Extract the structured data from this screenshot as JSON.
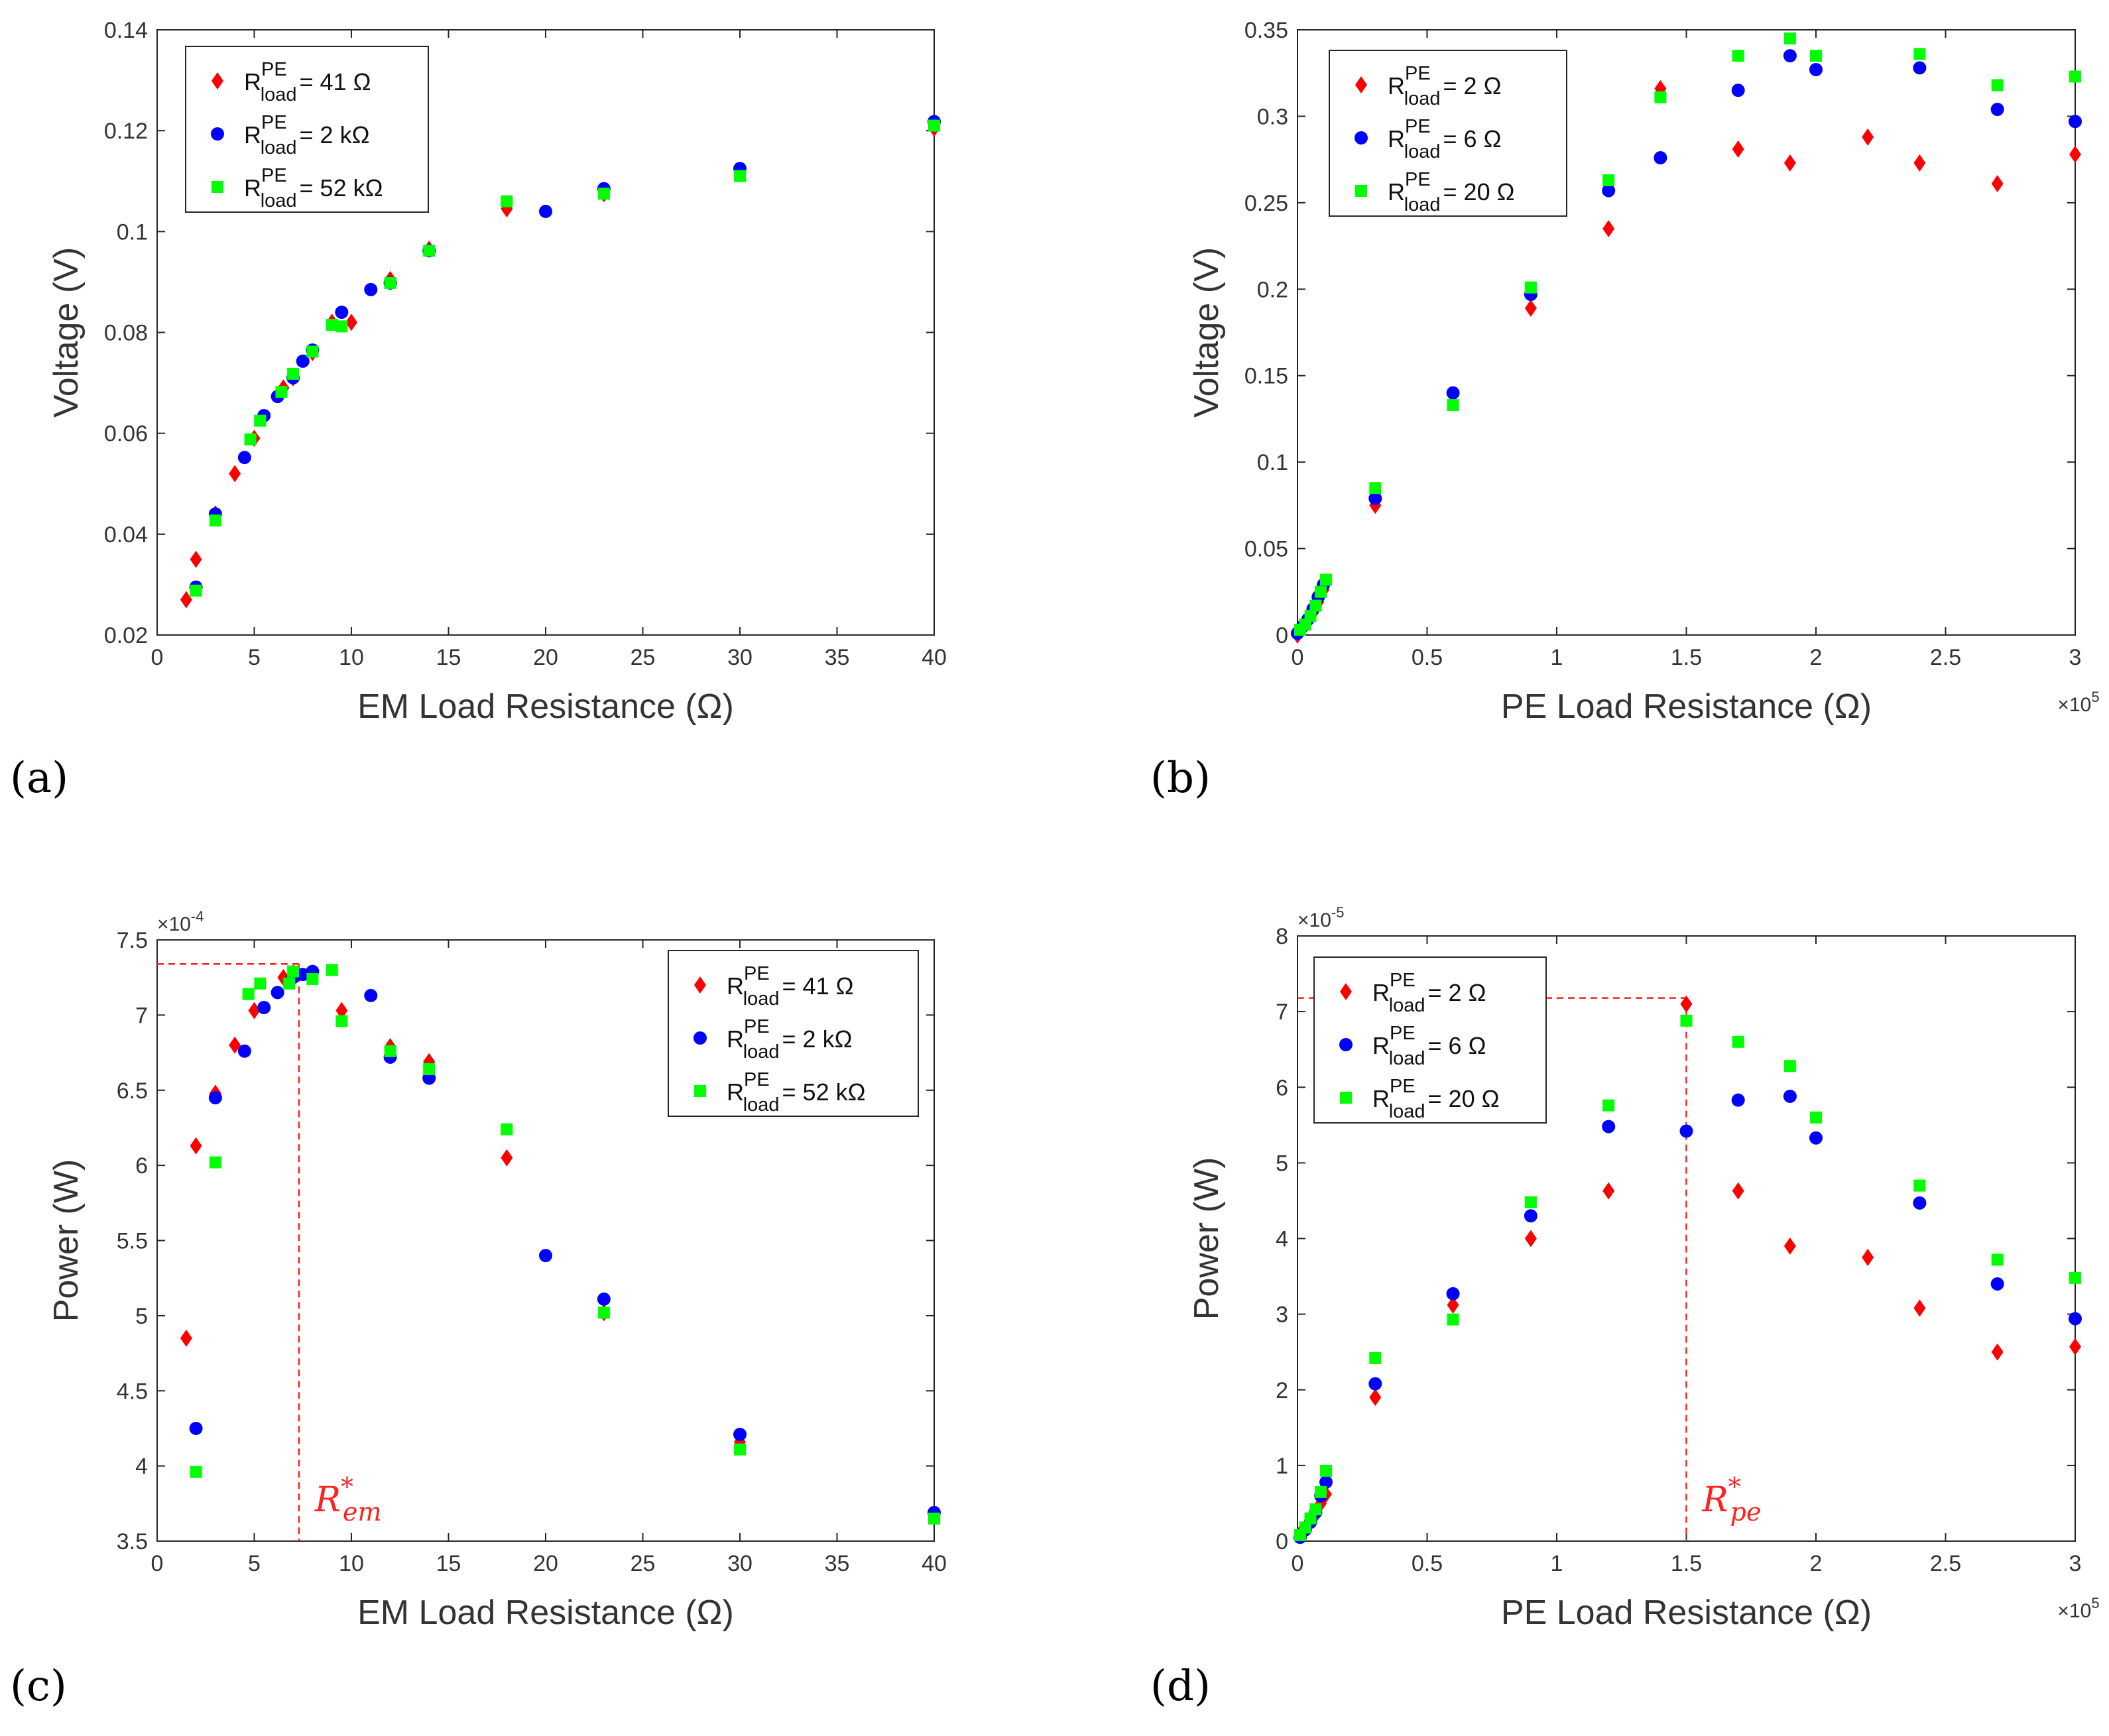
{
  "figure": {
    "panels": [
      "(a)",
      "(b)",
      "(c)",
      "(d)"
    ]
  },
  "colors": {
    "red": "#ff0000",
    "blue": "#0000ff",
    "green": "#00ff00",
    "annotation": "#ff2020"
  },
  "chart_data": [
    {
      "id": "a",
      "type": "scatter",
      "panel_label": "(a)",
      "title": "",
      "xlabel": "EM Load Resistance (Ω)",
      "ylabel": "Voltage (V)",
      "xlim": [
        0,
        40
      ],
      "ylim": [
        0.02,
        0.14
      ],
      "xticks": [
        0,
        5,
        10,
        15,
        20,
        25,
        30,
        35,
        40
      ],
      "xticklabels": [
        "0",
        "5",
        "10",
        "15",
        "20",
        "25",
        "30",
        "35",
        "40"
      ],
      "yticks": [
        0.02,
        0.04,
        0.06,
        0.08,
        0.1,
        0.12,
        0.14
      ],
      "yticklabels": [
        "0.02",
        "0.04",
        "0.06",
        "0.08",
        "0.1",
        "0.12",
        "0.14"
      ],
      "exponent": "",
      "legend_position": "top-left",
      "series": [
        {
          "name": "R_load^PE = 41 Ω",
          "base": "R",
          "sup": "PE",
          "sub": "load",
          "value": "= 41 Ω",
          "marker": "diamond",
          "color": "#ff0000",
          "x": [
            1.5,
            2,
            3,
            4,
            5,
            6.5,
            7,
            8,
            9,
            10,
            12,
            14,
            18,
            23,
            30,
            40
          ],
          "y": [
            0.027,
            0.035,
            0.044,
            0.052,
            0.059,
            0.069,
            0.071,
            0.076,
            0.082,
            0.082,
            0.0905,
            0.0965,
            0.1045,
            0.1075,
            0.1115,
            0.1205
          ]
        },
        {
          "name": "R_load^PE = 2 kΩ",
          "base": "R",
          "sup": "PE",
          "sub": "load",
          "value": "= 2 kΩ",
          "marker": "circle",
          "color": "#0000ff",
          "x": [
            2,
            3,
            4.5,
            5.5,
            6.2,
            7,
            7.5,
            8,
            9.5,
            11,
            12,
            14,
            20,
            23,
            30,
            40
          ],
          "y": [
            0.0295,
            0.044,
            0.0552,
            0.0635,
            0.0673,
            0.071,
            0.0743,
            0.0765,
            0.084,
            0.0885,
            0.0898,
            0.0962,
            0.104,
            0.1085,
            0.1125,
            0.1218
          ]
        },
        {
          "name": "R_load^PE = 52 kΩ",
          "base": "R",
          "sup": "PE",
          "sub": "load",
          "value": "= 52 kΩ",
          "marker": "square",
          "color": "#00ff00",
          "x": [
            2,
            3,
            4.8,
            5.3,
            6.4,
            7,
            8,
            9,
            9.5,
            12,
            14,
            18,
            23,
            30,
            40
          ],
          "y": [
            0.0288,
            0.0427,
            0.0588,
            0.0625,
            0.0682,
            0.0718,
            0.0762,
            0.0815,
            0.0812,
            0.0898,
            0.0962,
            0.106,
            0.1075,
            0.111,
            0.121
          ]
        }
      ],
      "annotations": []
    },
    {
      "id": "b",
      "type": "scatter",
      "panel_label": "(b)",
      "title": "",
      "xlabel": "PE Load Resistance (Ω)",
      "ylabel": "Voltage (V)",
      "xlim": [
        0,
        300000
      ],
      "ylim": [
        0,
        0.35
      ],
      "xticks": [
        0,
        50000,
        100000,
        150000,
        200000,
        250000,
        300000
      ],
      "xticklabels": [
        "0",
        "0.5",
        "1",
        "1.5",
        "2",
        "2.5",
        "3"
      ],
      "yticks": [
        0,
        0.05,
        0.1,
        0.15,
        0.2,
        0.25,
        0.3,
        0.35
      ],
      "yticklabels": [
        "0",
        "0.05",
        "0.1",
        "0.15",
        "0.2",
        "0.25",
        "0.3",
        "0.35"
      ],
      "exponent": "×10",
      "exponent_power": "5",
      "exponent_axis": "x",
      "legend_position": "top-left",
      "series": [
        {
          "name": "R_load^PE = 2 Ω",
          "base": "R",
          "sup": "PE",
          "sub": "load",
          "value": "= 2 Ω",
          "marker": "diamond",
          "color": "#ff0000",
          "x": [
            0,
            2000,
            4000,
            6000,
            8000,
            10000,
            30000,
            60000,
            90000,
            120000,
            140000,
            170000,
            190000,
            220000,
            240000,
            270000,
            300000
          ],
          "y": [
            0,
            0.004,
            0.008,
            0.013,
            0.019,
            0.026,
            0.075,
            0.139,
            0.189,
            0.235,
            0.316,
            0.281,
            0.273,
            0.288,
            0.273,
            0.261,
            0.278
          ]
        },
        {
          "name": "R_load^PE = 6 Ω",
          "base": "R",
          "sup": "PE",
          "sub": "load",
          "value": "= 6 Ω",
          "marker": "circle",
          "color": "#0000ff",
          "x": [
            0,
            2000,
            4000,
            6000,
            8000,
            10000,
            30000,
            60000,
            90000,
            120000,
            140000,
            170000,
            190000,
            200000,
            240000,
            270000,
            300000
          ],
          "y": [
            0.001,
            0.005,
            0.009,
            0.015,
            0.022,
            0.029,
            0.079,
            0.14,
            0.197,
            0.257,
            0.276,
            0.315,
            0.335,
            0.327,
            0.328,
            0.304,
            0.297
          ]
        },
        {
          "name": "R_load^PE = 20 Ω",
          "base": "R",
          "sup": "PE",
          "sub": "load",
          "value": "= 20 Ω",
          "marker": "square",
          "color": "#00ff00",
          "x": [
            1000,
            3000,
            5000,
            7000,
            9000,
            11000,
            30000,
            60000,
            90000,
            120000,
            140000,
            170000,
            190000,
            200000,
            240000,
            270000,
            300000
          ],
          "y": [
            0.003,
            0.006,
            0.011,
            0.017,
            0.025,
            0.032,
            0.085,
            0.133,
            0.201,
            0.263,
            0.311,
            0.335,
            0.345,
            0.335,
            0.336,
            0.318,
            0.323
          ]
        }
      ],
      "annotations": []
    },
    {
      "id": "c",
      "type": "scatter",
      "panel_label": "(c)",
      "title": "",
      "xlabel": "EM Load Resistance (Ω)",
      "ylabel": "Power (W)",
      "xlim": [
        0,
        40
      ],
      "ylim": [
        3.5,
        7.5
      ],
      "xticks": [
        0,
        5,
        10,
        15,
        20,
        25,
        30,
        35,
        40
      ],
      "xticklabels": [
        "0",
        "5",
        "10",
        "15",
        "20",
        "25",
        "30",
        "35",
        "40"
      ],
      "yticks": [
        3.5,
        4,
        4.5,
        5,
        5.5,
        6,
        6.5,
        7,
        7.5
      ],
      "yticklabels": [
        "3.5",
        "4",
        "4.5",
        "5",
        "5.5",
        "6",
        "6.5",
        "7",
        "7.5"
      ],
      "exponent": "×10",
      "exponent_power": "-4",
      "exponent_axis": "y",
      "legend_position": "top-right",
      "series": [
        {
          "name": "R_load^PE = 41 Ω",
          "base": "R",
          "sup": "PE",
          "sub": "load",
          "value": "= 41 Ω",
          "marker": "diamond",
          "color": "#ff0000",
          "x": [
            1.5,
            2,
            3,
            4,
            5,
            6.5,
            7,
            8,
            9.5,
            12,
            14,
            18,
            23,
            30,
            40
          ],
          "y": [
            4.85,
            6.13,
            6.48,
            6.8,
            7.03,
            7.25,
            7.28,
            7.27,
            7.03,
            6.79,
            6.69,
            6.05,
            5.02,
            4.16,
            3.68
          ]
        },
        {
          "name": "R_load^PE = 2 kΩ",
          "base": "R",
          "sup": "PE",
          "sub": "load",
          "value": "= 2 kΩ",
          "marker": "circle",
          "color": "#0000ff",
          "x": [
            2,
            3,
            4.5,
            5.5,
            6.2,
            7,
            7.5,
            8,
            11,
            12,
            14,
            20,
            23,
            30,
            40
          ],
          "y": [
            4.25,
            6.45,
            6.76,
            7.05,
            7.15,
            7.25,
            7.27,
            7.29,
            7.13,
            6.72,
            6.58,
            5.4,
            5.11,
            4.21,
            3.69
          ]
        },
        {
          "name": "R_load^PE = 52 kΩ",
          "base": "R",
          "sup": "PE",
          "sub": "load",
          "value": "= 52 kΩ",
          "marker": "square",
          "color": "#00ff00",
          "x": [
            2,
            3,
            4.7,
            5.3,
            6.8,
            7,
            8,
            9,
            9.5,
            12,
            14,
            18,
            23,
            30,
            40
          ],
          "y": [
            3.96,
            6.02,
            7.14,
            7.21,
            7.21,
            7.29,
            7.24,
            7.3,
            6.96,
            6.76,
            6.64,
            6.24,
            5.02,
            4.11,
            3.65
          ]
        }
      ],
      "annotations": [
        {
          "kind": "optimum",
          "label": "R",
          "sub": "em",
          "sup": "*",
          "x": 7.3,
          "y": 7.34
        }
      ]
    },
    {
      "id": "d",
      "type": "scatter",
      "panel_label": "(d)",
      "title": "",
      "xlabel": "PE Load Resistance (Ω)",
      "ylabel": "Power (W)",
      "xlim": [
        0,
        300000
      ],
      "ylim": [
        0,
        8
      ],
      "xticks": [
        0,
        50000,
        100000,
        150000,
        200000,
        250000,
        300000
      ],
      "xticklabels": [
        "0",
        "0.5",
        "1",
        "1.5",
        "2",
        "2.5",
        "3"
      ],
      "yticks": [
        0,
        1,
        2,
        3,
        4,
        5,
        6,
        7,
        8
      ],
      "yticklabels": [
        "0",
        "1",
        "2",
        "3",
        "4",
        "5",
        "6",
        "7",
        "8"
      ],
      "exponent": "×10",
      "exponent_power": "-5",
      "exponent_axis": "y",
      "exponent2": "×10",
      "exponent2_power": "5",
      "legend_position": "top-left",
      "series": [
        {
          "name": "R_load^PE = 2 Ω",
          "base": "R",
          "sup": "PE",
          "sub": "load",
          "value": "= 2 Ω",
          "marker": "diamond",
          "color": "#ff0000",
          "x": [
            1000,
            3000,
            5000,
            7000,
            9000,
            11000,
            30000,
            60000,
            90000,
            120000,
            150000,
            170000,
            190000,
            220000,
            240000,
            270000,
            300000
          ],
          "y": [
            0.1,
            0.15,
            0.25,
            0.35,
            0.5,
            0.62,
            1.9,
            3.12,
            4.0,
            4.63,
            7.1,
            4.63,
            3.9,
            3.75,
            3.08,
            2.5,
            2.57
          ]
        },
        {
          "name": "R_load^PE = 6 Ω",
          "base": "R",
          "sup": "PE",
          "sub": "load",
          "value": "= 6 Ω",
          "marker": "circle",
          "color": "#0000ff",
          "x": [
            1000,
            3000,
            5000,
            7000,
            9000,
            11000,
            30000,
            60000,
            90000,
            120000,
            150000,
            170000,
            190000,
            200000,
            240000,
            270000,
            300000
          ],
          "y": [
            0.05,
            0.15,
            0.25,
            0.38,
            0.6,
            0.78,
            2.08,
            3.27,
            4.3,
            5.48,
            5.42,
            5.83,
            5.88,
            5.33,
            4.47,
            3.4,
            2.94
          ]
        },
        {
          "name": "R_load^PE = 20 Ω",
          "base": "R",
          "sup": "PE",
          "sub": "load",
          "value": "= 20 Ω",
          "marker": "square",
          "color": "#00ff00",
          "x": [
            1000,
            3000,
            5000,
            7000,
            9000,
            11000,
            30000,
            60000,
            90000,
            120000,
            150000,
            170000,
            190000,
            200000,
            240000,
            270000,
            300000
          ],
          "y": [
            0.08,
            0.18,
            0.3,
            0.42,
            0.65,
            0.93,
            2.42,
            2.93,
            4.48,
            5.76,
            6.88,
            6.6,
            6.28,
            5.6,
            4.7,
            3.72,
            3.48
          ]
        }
      ],
      "annotations": [
        {
          "kind": "optimum",
          "label": "R",
          "sub": "pe",
          "sup": "*",
          "x": 150000,
          "y": 7.18
        }
      ]
    }
  ]
}
